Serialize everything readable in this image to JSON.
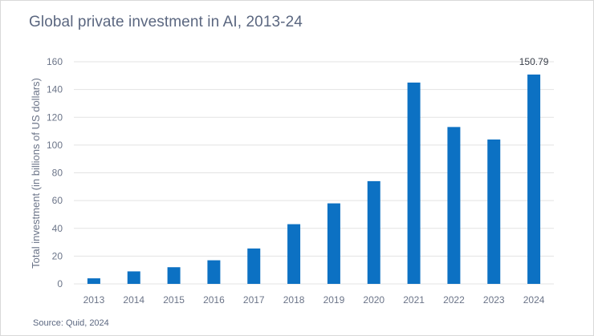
{
  "title": "Global private investment in AI, 2013-24",
  "source": "Source: Quid, 2024",
  "colors": {
    "bar": "#0c71c3",
    "grid": "#e3e3e3",
    "text": "#5b6780"
  },
  "chart_data": {
    "type": "bar",
    "title": "Global private investment in AI, 2013-24",
    "xlabel": "",
    "ylabel": "Total investment (in billions of US dollars)",
    "categories": [
      "2013",
      "2014",
      "2015",
      "2016",
      "2017",
      "2018",
      "2019",
      "2020",
      "2021",
      "2022",
      "2023",
      "2024"
    ],
    "values": [
      4,
      9,
      12,
      17,
      25.5,
      43,
      58,
      74,
      145,
      113,
      104,
      150.79
    ],
    "ylim": [
      0,
      160
    ],
    "yticks": [
      "0",
      "20",
      "40",
      "60",
      "80",
      "100",
      "120",
      "140",
      "160"
    ],
    "data_labels": [
      {
        "category": "2024",
        "text": "150.79"
      }
    ],
    "grid": true,
    "legend": "none"
  }
}
